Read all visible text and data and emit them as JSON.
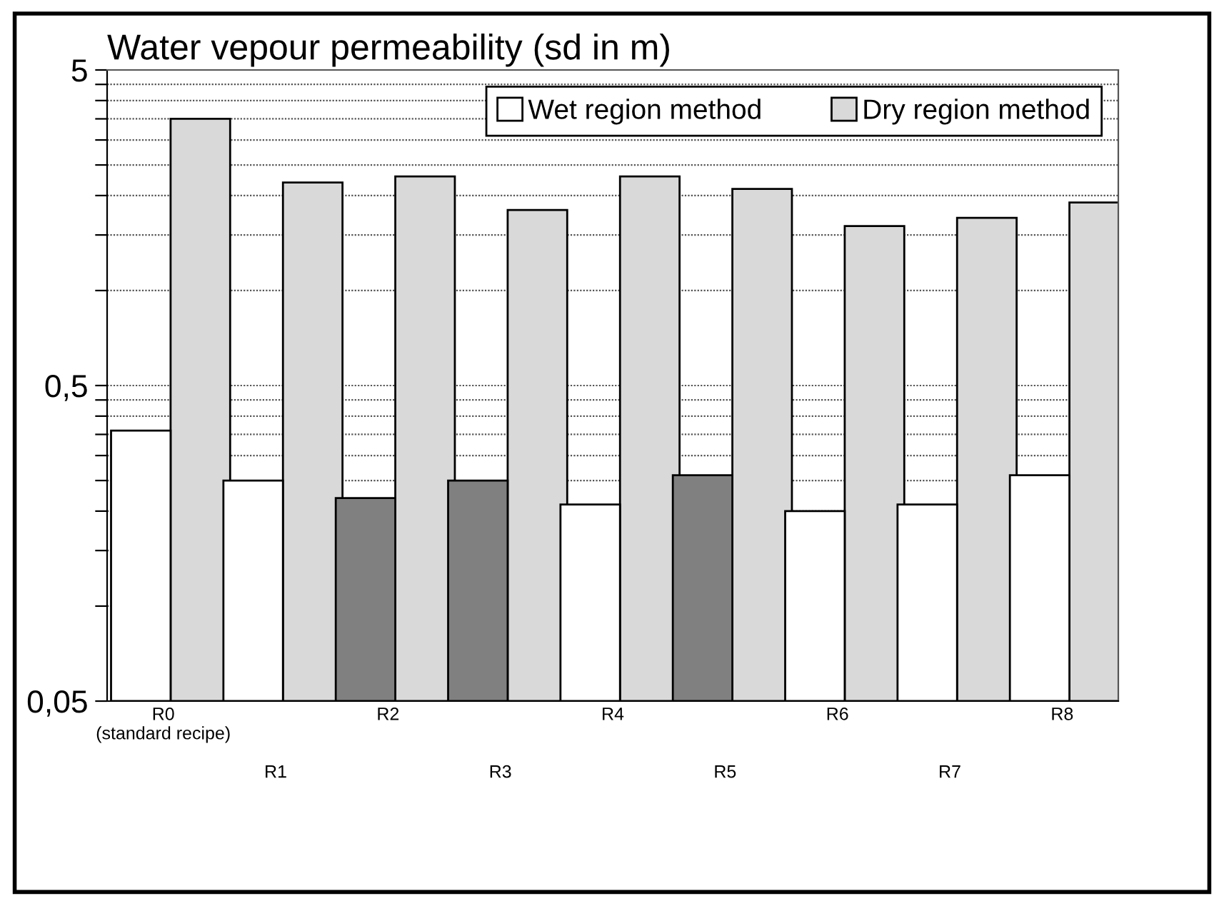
{
  "chart_data": {
    "type": "bar",
    "title": "Water vepour permeability (sd in m)",
    "categories": [
      "R0\n(standard recipe)",
      "R1",
      "R2",
      "R3",
      "R4",
      "R5",
      "R6",
      "R7",
      "R8"
    ],
    "series": [
      {
        "name": "Wet region method",
        "color": "#ffffff",
        "colors": [
          "#ffffff",
          "#ffffff",
          "#808080",
          "#808080",
          "#ffffff",
          "#808080",
          "#ffffff",
          "#ffffff",
          "#ffffff"
        ],
        "values": [
          0.36,
          0.25,
          0.22,
          0.25,
          0.21,
          0.26,
          0.2,
          0.21,
          0.26
        ]
      },
      {
        "name": "Dry region method",
        "color": "#d9d9d9",
        "values": [
          3.5,
          2.2,
          2.3,
          1.8,
          2.3,
          2.1,
          1.6,
          1.7,
          1.9
        ]
      }
    ],
    "log": "y",
    "ylim": [
      0.05,
      5
    ],
    "yticks": [
      {
        "value": 0.05,
        "label": "0,05"
      },
      {
        "value": 0.1,
        "label": null
      },
      {
        "value": 0.15,
        "label": null
      },
      {
        "value": 0.2,
        "label": null
      },
      {
        "value": 0.25,
        "label": null
      },
      {
        "value": 0.3,
        "label": null
      },
      {
        "value": 0.35,
        "label": null
      },
      {
        "value": 0.4,
        "label": null
      },
      {
        "value": 0.45,
        "label": null
      },
      {
        "value": 0.5,
        "label": "0,5"
      },
      {
        "value": 1,
        "label": null
      },
      {
        "value": 1.5,
        "label": null
      },
      {
        "value": 2,
        "label": null
      },
      {
        "value": 2.5,
        "label": null
      },
      {
        "value": 3,
        "label": null
      },
      {
        "value": 3.5,
        "label": null
      },
      {
        "value": 4,
        "label": null
      },
      {
        "value": 4.5,
        "label": null
      },
      {
        "value": 5,
        "label": "5"
      }
    ],
    "grid": "y",
    "legend": "top right"
  }
}
